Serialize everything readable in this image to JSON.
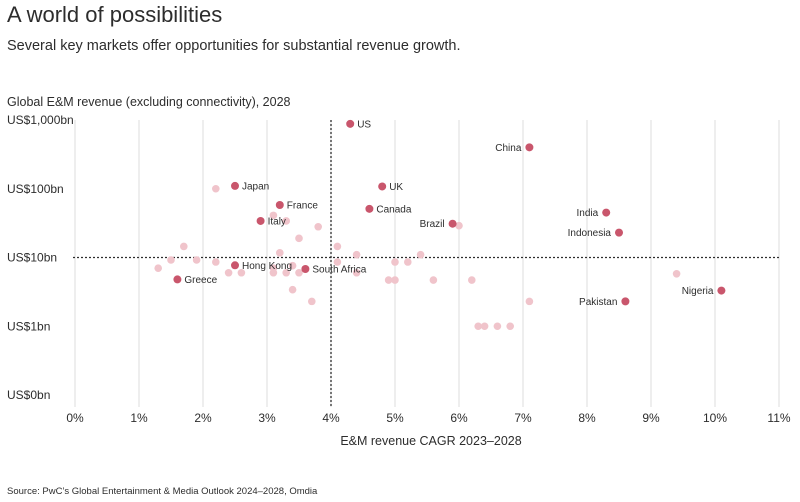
{
  "header": {
    "title": "A world of possibilities",
    "subtitle": "Several key markets offer opportunities for substantial revenue growth."
  },
  "footer": {
    "source": "Source: PwC’s Global Entertainment & Media Outlook 2024–2028, Omdia"
  },
  "colors": {
    "highlight": "#c9566c",
    "muted": "#f0c4cb",
    "grid": "#dddddd",
    "reference": "#2d2d2d"
  },
  "chart_data": {
    "type": "scatter",
    "title": "Global E&M revenue (excluding connectivity), 2028",
    "xlabel": "E&M revenue CAGR 2023–2028",
    "ylabel": "",
    "xlim": [
      0,
      11
    ],
    "x_unit": "percent",
    "y_scale": "log",
    "y_unit": "US$bn",
    "x_ticks": [
      {
        "value": 0,
        "label": "0%"
      },
      {
        "value": 1,
        "label": "1%"
      },
      {
        "value": 2,
        "label": "2%"
      },
      {
        "value": 3,
        "label": "3%"
      },
      {
        "value": 4,
        "label": "4%"
      },
      {
        "value": 5,
        "label": "5%"
      },
      {
        "value": 6,
        "label": "6%"
      },
      {
        "value": 7,
        "label": "7%"
      },
      {
        "value": 8,
        "label": "8%"
      },
      {
        "value": 9,
        "label": "9%"
      },
      {
        "value": 10,
        "label": "10%"
      },
      {
        "value": 11,
        "label": "11%"
      }
    ],
    "y_ticks": [
      {
        "value": 1000,
        "label": "US$1,000bn"
      },
      {
        "value": 100,
        "label": "US$100bn"
      },
      {
        "value": 10,
        "label": "US$10bn"
      },
      {
        "value": 1,
        "label": "US$1bn"
      },
      {
        "value": 0.1,
        "label": "US$0bn"
      }
    ],
    "reference_lines": {
      "x": 4,
      "y": 10
    },
    "grid": "vertical",
    "highlighted": [
      {
        "name": "US",
        "x": 4.3,
        "y": 880
      },
      {
        "name": "China",
        "x": 7.1,
        "y": 400
      },
      {
        "name": "UK",
        "x": 4.8,
        "y": 108
      },
      {
        "name": "Japan",
        "x": 2.5,
        "y": 110
      },
      {
        "name": "France",
        "x": 3.2,
        "y": 58
      },
      {
        "name": "Canada",
        "x": 4.6,
        "y": 51
      },
      {
        "name": "India",
        "x": 8.3,
        "y": 45
      },
      {
        "name": "Italy",
        "x": 2.9,
        "y": 34
      },
      {
        "name": "Brazil",
        "x": 5.9,
        "y": 31
      },
      {
        "name": "Indonesia",
        "x": 8.5,
        "y": 23
      },
      {
        "name": "Hong Kong",
        "x": 2.5,
        "y": 7.7
      },
      {
        "name": "South Africa",
        "x": 3.6,
        "y": 6.8
      },
      {
        "name": "Greece",
        "x": 1.6,
        "y": 4.8
      },
      {
        "name": "Nigeria",
        "x": 10.1,
        "y": 3.3
      },
      {
        "name": "Pakistan",
        "x": 8.6,
        "y": 2.3
      }
    ],
    "others": [
      {
        "x": 2.2,
        "y": 100
      },
      {
        "x": 3.1,
        "y": 41
      },
      {
        "x": 3.3,
        "y": 34
      },
      {
        "x": 3.8,
        "y": 28
      },
      {
        "x": 3.5,
        "y": 19
      },
      {
        "x": 1.7,
        "y": 14.5
      },
      {
        "x": 4.1,
        "y": 14.5
      },
      {
        "x": 3.2,
        "y": 11.7
      },
      {
        "x": 4.4,
        "y": 11
      },
      {
        "x": 5.4,
        "y": 11
      },
      {
        "x": 6.0,
        "y": 29
      },
      {
        "x": 1.5,
        "y": 9.2
      },
      {
        "x": 1.9,
        "y": 9.2
      },
      {
        "x": 2.2,
        "y": 8.6
      },
      {
        "x": 4.1,
        "y": 8.6
      },
      {
        "x": 5.0,
        "y": 8.6
      },
      {
        "x": 5.2,
        "y": 8.6
      },
      {
        "x": 1.3,
        "y": 7.0
      },
      {
        "x": 3.1,
        "y": 7.0
      },
      {
        "x": 3.4,
        "y": 7.6
      },
      {
        "x": 2.4,
        "y": 6.0
      },
      {
        "x": 2.6,
        "y": 6.0
      },
      {
        "x": 3.1,
        "y": 6.0
      },
      {
        "x": 3.3,
        "y": 6.0
      },
      {
        "x": 3.5,
        "y": 6.0
      },
      {
        "x": 4.4,
        "y": 6.0
      },
      {
        "x": 4.9,
        "y": 4.7
      },
      {
        "x": 5.0,
        "y": 4.7
      },
      {
        "x": 5.6,
        "y": 4.7
      },
      {
        "x": 6.2,
        "y": 4.7
      },
      {
        "x": 3.4,
        "y": 3.4
      },
      {
        "x": 3.7,
        "y": 2.3
      },
      {
        "x": 7.1,
        "y": 2.3
      },
      {
        "x": 6.3,
        "y": 1.0
      },
      {
        "x": 6.4,
        "y": 1.0
      },
      {
        "x": 6.6,
        "y": 1.0
      },
      {
        "x": 6.8,
        "y": 1.0
      },
      {
        "x": 9.4,
        "y": 5.8
      }
    ]
  }
}
